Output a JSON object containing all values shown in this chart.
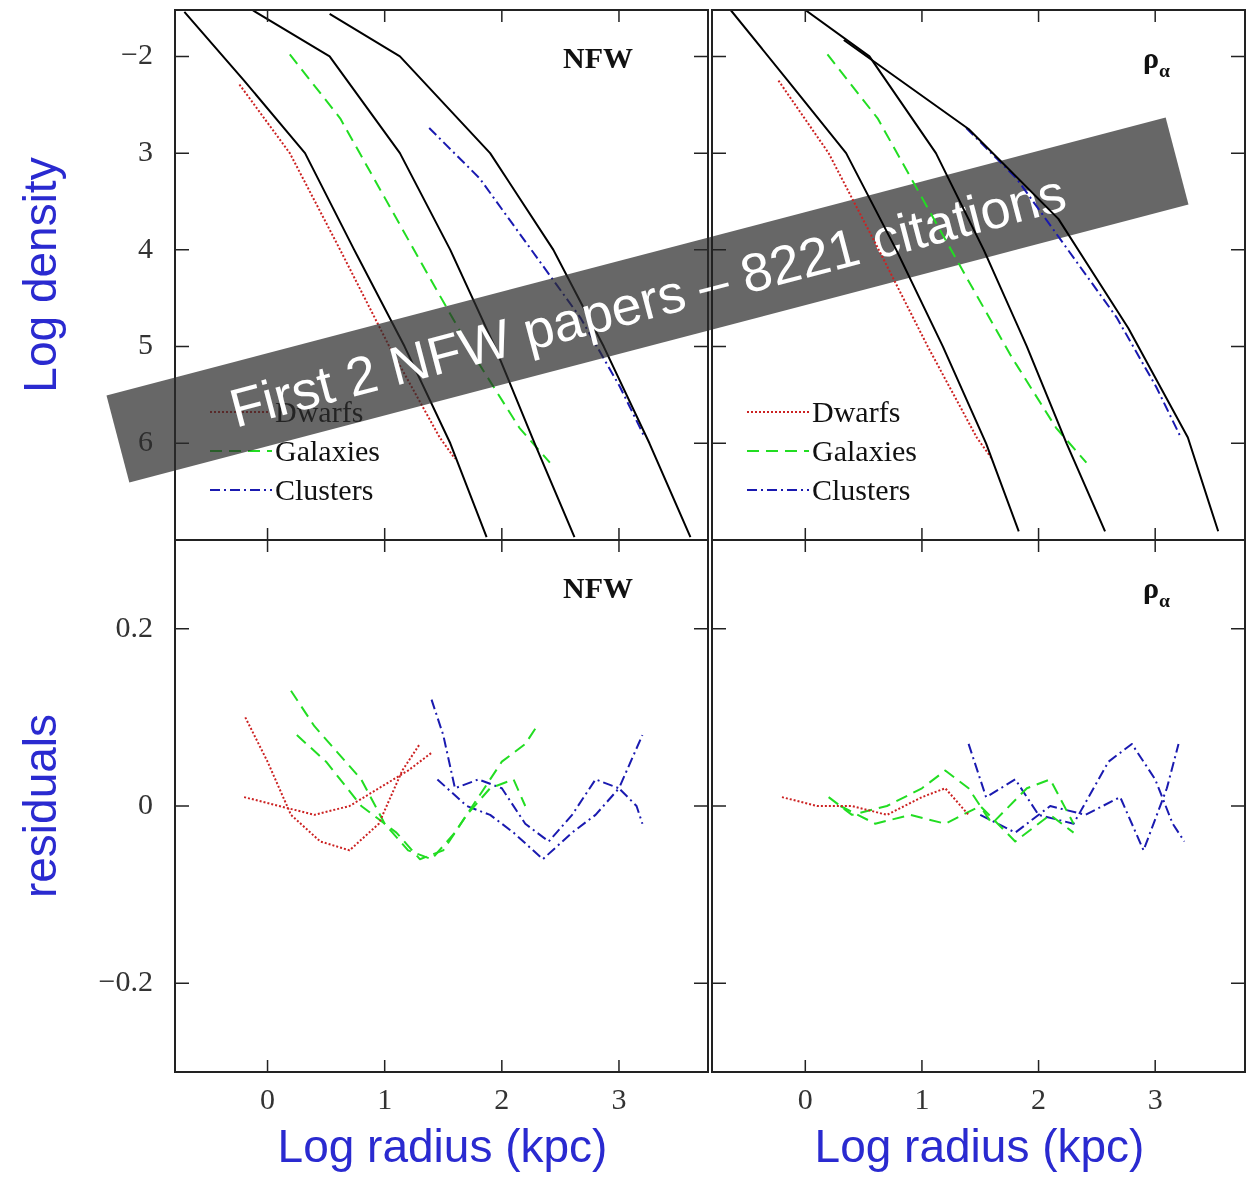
{
  "chart_data": [
    {
      "type": "line",
      "ylabel": "Log density",
      "xlim": [
        -0.79,
        3.76
      ],
      "xticks": [
        0,
        1,
        2,
        3
      ],
      "ylim": [
        -7,
        -1.52
      ],
      "yticks": [
        {
          "value": -2,
          "label": "−2"
        },
        {
          "value": -3,
          "label": "3"
        },
        {
          "value": -4,
          "label": "4"
        },
        {
          "value": -5,
          "label": "5"
        },
        {
          "value": -6,
          "label": "6"
        }
      ],
      "tick_labels": "y",
      "legend": "bottom left",
      "marker": "none",
      "annotations": [
        "NFW",
        "First 2 NFW papers – 8221 citations"
      ],
      "series": [
        {
          "type": "line",
          "color": "#000000",
          "line_style": "solid",
          "x": [
            -0.71,
            -0.2,
            0.32,
            0.74,
            1.17,
            1.56,
            1.87
          ],
          "values": [
            -1.54,
            -2.25,
            -3,
            -4,
            -5,
            -6,
            -6.97
          ]
        },
        {
          "type": "line",
          "color": "#000000",
          "line_style": "solid",
          "x": [
            -0.13,
            0.53,
            1.13,
            1.56,
            1.94,
            2.28,
            2.62
          ],
          "values": [
            -1.52,
            -2,
            -3,
            -4,
            -5,
            -6,
            -6.97
          ]
        },
        {
          "type": "line",
          "color": "#000000",
          "line_style": "solid",
          "x": [
            0.53,
            1.13,
            1.9,
            2.44,
            2.87,
            3.26,
            3.61
          ],
          "values": [
            -1.56,
            -2,
            -3,
            -4,
            -5,
            -6,
            -6.97
          ]
        },
        {
          "type": "line",
          "name": "Dwarfs",
          "color": "#cc2222",
          "line_style": "dotted",
          "x": [
            -0.24,
            0.19,
            0.62,
            1.04,
            1.47,
            1.6
          ],
          "values": [
            -2.29,
            -3,
            -4,
            -5,
            -5.94,
            -6.16
          ]
        },
        {
          "type": "line",
          "name": "Galaxies",
          "color": "#22dd22",
          "line_style": "dashed",
          "x": [
            0.19,
            0.62,
            1.0,
            1.38,
            1.77,
            2.15,
            2.41
          ],
          "values": [
            -1.98,
            -2.64,
            -3.46,
            -4.28,
            -5.11,
            -5.84,
            -6.2
          ]
        },
        {
          "type": "line",
          "name": "Clusters",
          "color": "#1a1ab0",
          "line_style": "dashdot",
          "x": [
            1.38,
            1.81,
            2.24,
            2.67,
            3.01,
            3.22
          ],
          "values": [
            -2.74,
            -3.26,
            -3.98,
            -4.7,
            -5.42,
            -5.94
          ]
        }
      ]
    },
    {
      "type": "line",
      "xlim": [
        -0.8,
        3.77
      ],
      "xticks": [
        0,
        1,
        2,
        3
      ],
      "ylim": [
        -7,
        -1.52
      ],
      "yticks": [
        -2,
        -3,
        -4,
        -5,
        -6
      ],
      "tick_labels": false,
      "legend": "bottom left",
      "marker": "none",
      "annotations": [
        "ρ$_{α}$"
      ],
      "series": [
        {
          "type": "line",
          "color": "#000000",
          "line_style": "solid",
          "x": [
            -0.64,
            -0.15,
            0.35,
            0.78,
            1.18,
            1.55,
            1.83
          ],
          "values": [
            -1.52,
            -2.25,
            -3,
            -4,
            -5,
            -6,
            -6.91
          ]
        },
        {
          "type": "line",
          "color": "#000000",
          "line_style": "solid",
          "x": [
            0.0,
            0.55,
            1.12,
            1.53,
            1.9,
            2.24,
            2.57
          ],
          "values": [
            -1.52,
            -2,
            -3,
            -4,
            -5,
            -6,
            -6.91
          ]
        },
        {
          "type": "line",
          "color": "#000000",
          "line_style": "solid",
          "x": [
            0.33,
            1.4,
            2.17,
            2.77,
            3.28,
            3.54
          ],
          "values": [
            -1.83,
            -2.75,
            -3.68,
            -4.81,
            -5.94,
            -6.91
          ]
        },
        {
          "type": "line",
          "name": "Dwarfs",
          "color": "#cc2222",
          "line_style": "dotted",
          "x": [
            -0.23,
            0.2,
            0.63,
            1.05,
            1.47,
            1.6
          ],
          "values": [
            -2.25,
            -3,
            -4,
            -5,
            -5.94,
            -6.16
          ]
        },
        {
          "type": "line",
          "name": "Galaxies",
          "color": "#22dd22",
          "line_style": "dashed",
          "x": [
            0.19,
            0.62,
            1.0,
            1.38,
            1.77,
            2.15,
            2.41
          ],
          "values": [
            -1.98,
            -2.64,
            -3.46,
            -4.28,
            -5.11,
            -5.84,
            -6.2
          ]
        },
        {
          "type": "line",
          "name": "Clusters",
          "color": "#1a1ab0",
          "line_style": "dashdot",
          "x": [
            1.38,
            1.81,
            2.24,
            2.67,
            3.01,
            3.22
          ],
          "values": [
            -2.74,
            -3.26,
            -3.98,
            -4.7,
            -5.42,
            -5.94
          ]
        }
      ]
    },
    {
      "type": "line",
      "xlabel": "Log radius (kpc)",
      "ylabel": "residuals",
      "xlim": [
        -0.79,
        3.76
      ],
      "xticks": [
        0,
        1,
        2,
        3
      ],
      "ylim": [
        -0.3,
        0.3
      ],
      "yticks": [
        {
          "value": 0.2,
          "label": "0.2"
        },
        {
          "value": 0,
          "label": "0"
        },
        {
          "value": -0.2,
          "label": "−0.2"
        }
      ],
      "marker": "none",
      "annotations": [
        "NFW"
      ],
      "series": [
        {
          "type": "line",
          "color": "#cc2222",
          "line_style": "dotted",
          "x": [
            -0.19,
            0.0,
            0.2,
            0.45,
            0.7,
            0.95,
            1.15,
            1.3
          ],
          "values": [
            0.1,
            0.05,
            -0.01,
            -0.04,
            -0.05,
            -0.02,
            0.04,
            0.07
          ]
        },
        {
          "type": "line",
          "color": "#cc2222",
          "line_style": "dotted",
          "x": [
            -0.2,
            0.1,
            0.4,
            0.7,
            0.95,
            1.2,
            1.4
          ],
          "values": [
            0.01,
            0.0,
            -0.01,
            0.0,
            0.02,
            0.04,
            0.06
          ]
        },
        {
          "type": "line",
          "color": "#22dd22",
          "line_style": "dashed",
          "x": [
            0.2,
            0.4,
            0.6,
            0.8,
            1.0,
            1.2,
            1.4,
            1.6,
            1.8,
            2.0,
            2.2,
            2.3
          ],
          "values": [
            0.13,
            0.09,
            0.06,
            0.03,
            -0.02,
            -0.05,
            -0.06,
            -0.03,
            0.01,
            0.05,
            0.07,
            0.09
          ]
        },
        {
          "type": "line",
          "color": "#22dd22",
          "line_style": "dashed",
          "x": [
            0.25,
            0.5,
            0.8,
            1.1,
            1.3,
            1.5,
            1.7,
            1.9,
            2.1,
            2.2
          ],
          "values": [
            0.08,
            0.05,
            0.0,
            -0.03,
            -0.06,
            -0.05,
            -0.01,
            0.02,
            0.03,
            0.0
          ]
        },
        {
          "type": "line",
          "color": "#1a1ab0",
          "line_style": "dashdot",
          "x": [
            1.4,
            1.5,
            1.6,
            1.8,
            2.0,
            2.2,
            2.4,
            2.6,
            2.8,
            3.0,
            3.2
          ],
          "values": [
            0.12,
            0.08,
            0.02,
            0.03,
            0.02,
            -0.02,
            -0.04,
            -0.01,
            0.03,
            0.02,
            0.08
          ]
        },
        {
          "type": "line",
          "color": "#1a1ab0",
          "line_style": "dashdot",
          "x": [
            1.45,
            1.7,
            1.9,
            2.1,
            2.35,
            2.6,
            2.8,
            3.0,
            3.15,
            3.2
          ],
          "values": [
            0.03,
            0.0,
            -0.01,
            -0.03,
            -0.06,
            -0.03,
            -0.01,
            0.02,
            0.0,
            -0.02
          ]
        }
      ]
    },
    {
      "type": "line",
      "xlabel": "Log radius (kpc)",
      "xlim": [
        -0.8,
        3.77
      ],
      "xticks": [
        0,
        1,
        2,
        3
      ],
      "ylim": [
        -0.3,
        0.3
      ],
      "yticks": [
        0.2,
        0,
        -0.2
      ],
      "tick_labels": "x",
      "marker": "none",
      "annotations": [
        "ρ$_{α}$"
      ],
      "series": [
        {
          "type": "line",
          "color": "#cc2222",
          "line_style": "dotted",
          "x": [
            -0.2,
            0.1,
            0.4,
            0.7,
            1.0,
            1.2,
            1.4
          ],
          "values": [
            0.01,
            0.0,
            0.0,
            -0.01,
            0.01,
            0.02,
            -0.01
          ]
        },
        {
          "type": "line",
          "color": "#22dd22",
          "line_style": "dashed",
          "x": [
            0.2,
            0.4,
            0.7,
            1.0,
            1.2,
            1.4,
            1.6,
            1.9,
            2.1,
            2.3
          ],
          "values": [
            0.01,
            -0.01,
            0.0,
            0.02,
            0.04,
            0.02,
            -0.02,
            0.02,
            0.03,
            -0.02
          ]
        },
        {
          "type": "line",
          "color": "#22dd22",
          "line_style": "dashed",
          "x": [
            0.3,
            0.6,
            0.9,
            1.2,
            1.5,
            1.8,
            2.1,
            2.3
          ],
          "values": [
            0.0,
            -0.02,
            -0.01,
            -0.02,
            0.0,
            -0.04,
            -0.01,
            -0.03
          ]
        },
        {
          "type": "line",
          "color": "#1a1ab0",
          "line_style": "dashdot",
          "x": [
            1.4,
            1.55,
            1.8,
            2.0,
            2.3,
            2.6,
            2.8,
            3.0,
            3.15,
            3.25
          ],
          "values": [
            0.07,
            0.01,
            0.03,
            -0.01,
            -0.02,
            0.05,
            0.07,
            0.03,
            -0.02,
            -0.04
          ]
        },
        {
          "type": "line",
          "color": "#1a1ab0",
          "line_style": "dashdot",
          "x": [
            1.5,
            1.8,
            2.1,
            2.4,
            2.7,
            2.9,
            3.1,
            3.2
          ],
          "values": [
            -0.01,
            -0.03,
            0.0,
            -0.01,
            0.01,
            -0.05,
            0.02,
            0.07
          ]
        }
      ]
    }
  ]
}
